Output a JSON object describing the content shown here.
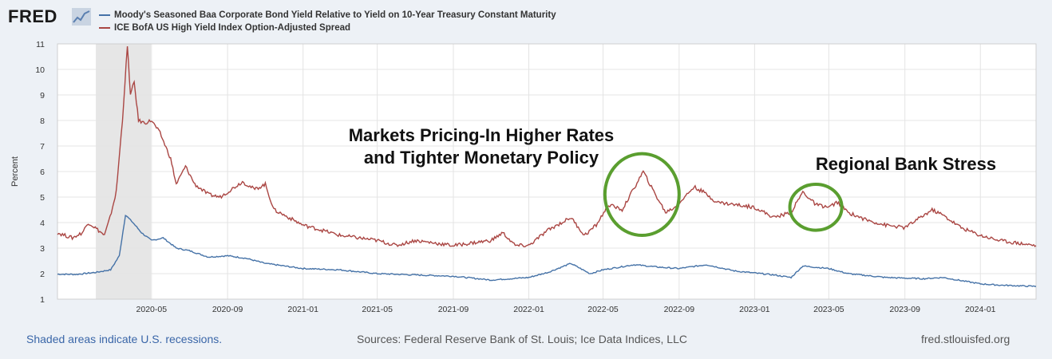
{
  "brand": {
    "logo_text": "FRED",
    "logo_icon": "chart-line-icon"
  },
  "colors": {
    "series_baa": "#4572a7",
    "series_hy": "#aa4643",
    "recession": "#e6e6e6",
    "circle": "#5a9e2f"
  },
  "chart_data": {
    "type": "line",
    "title": "",
    "ylabel": "Percent",
    "xlabel": "",
    "ylim": [
      1,
      11
    ],
    "xlim": [
      "2019-12-01",
      "2024-03-31"
    ],
    "y_ticks": [
      "1",
      "2",
      "3",
      "4",
      "5",
      "6",
      "7",
      "8",
      "9",
      "10",
      "11"
    ],
    "x_ticks": [
      {
        "date": "2020-05-01",
        "label": "2020-05"
      },
      {
        "date": "2020-09-01",
        "label": "2020-09"
      },
      {
        "date": "2021-01-01",
        "label": "2021-01"
      },
      {
        "date": "2021-05-01",
        "label": "2021-05"
      },
      {
        "date": "2021-09-01",
        "label": "2021-09"
      },
      {
        "date": "2022-01-01",
        "label": "2022-01"
      },
      {
        "date": "2022-05-01",
        "label": "2022-05"
      },
      {
        "date": "2022-09-01",
        "label": "2022-09"
      },
      {
        "date": "2023-01-01",
        "label": "2023-01"
      },
      {
        "date": "2023-05-01",
        "label": "2023-05"
      },
      {
        "date": "2023-09-01",
        "label": "2023-09"
      },
      {
        "date": "2024-01-01",
        "label": "2024-01"
      }
    ],
    "recession": {
      "start": "2020-02-01",
      "end": "2020-04-30"
    },
    "series": [
      {
        "name": "Moody's Seasoned Baa Corporate Bond Yield Relative to Yield on 10-Year Treasury Constant Maturity",
        "color": "#4572a7",
        "points": [
          [
            "2019-12-01",
            1.98
          ],
          [
            "2020-01-01",
            1.97
          ],
          [
            "2020-02-01",
            2.05
          ],
          [
            "2020-02-25",
            2.15
          ],
          [
            "2020-03-10",
            2.7
          ],
          [
            "2020-03-20",
            4.3
          ],
          [
            "2020-04-01",
            4.0
          ],
          [
            "2020-04-15",
            3.6
          ],
          [
            "2020-05-01",
            3.3
          ],
          [
            "2020-05-20",
            3.4
          ],
          [
            "2020-06-10",
            3.0
          ],
          [
            "2020-07-01",
            2.9
          ],
          [
            "2020-08-01",
            2.65
          ],
          [
            "2020-09-01",
            2.7
          ],
          [
            "2020-10-01",
            2.6
          ],
          [
            "2020-11-01",
            2.4
          ],
          [
            "2021-01-01",
            2.2
          ],
          [
            "2021-03-01",
            2.15
          ],
          [
            "2021-05-01",
            2.0
          ],
          [
            "2021-07-01",
            1.95
          ],
          [
            "2021-09-01",
            1.9
          ],
          [
            "2021-11-01",
            1.75
          ],
          [
            "2022-01-01",
            1.85
          ],
          [
            "2022-02-01",
            2.05
          ],
          [
            "2022-03-10",
            2.4
          ],
          [
            "2022-04-10",
            2.0
          ],
          [
            "2022-05-01",
            2.15
          ],
          [
            "2022-06-20",
            2.35
          ],
          [
            "2022-08-01",
            2.25
          ],
          [
            "2022-09-01",
            2.2
          ],
          [
            "2022-10-15",
            2.35
          ],
          [
            "2022-12-01",
            2.1
          ],
          [
            "2023-02-01",
            1.95
          ],
          [
            "2023-03-01",
            1.85
          ],
          [
            "2023-03-20",
            2.3
          ],
          [
            "2023-05-01",
            2.2
          ],
          [
            "2023-06-01",
            2.0
          ],
          [
            "2023-08-01",
            1.85
          ],
          [
            "2023-10-01",
            1.8
          ],
          [
            "2023-11-01",
            1.85
          ],
          [
            "2024-01-01",
            1.6
          ],
          [
            "2024-02-01",
            1.55
          ],
          [
            "2024-03-31",
            1.5
          ]
        ]
      },
      {
        "name": "ICE BofA US High Yield Index Option-Adjusted Spread",
        "color": "#aa4643",
        "points": [
          [
            "2019-12-01",
            3.6
          ],
          [
            "2019-12-25",
            3.4
          ],
          [
            "2020-01-10",
            3.6
          ],
          [
            "2020-01-20",
            4.0
          ],
          [
            "2020-01-31",
            3.8
          ],
          [
            "2020-02-15",
            3.5
          ],
          [
            "2020-02-24",
            4.2
          ],
          [
            "2020-03-05",
            5.2
          ],
          [
            "2020-03-15",
            8.0
          ],
          [
            "2020-03-23",
            10.9
          ],
          [
            "2020-03-28",
            9.0
          ],
          [
            "2020-04-03",
            9.5
          ],
          [
            "2020-04-10",
            8.0
          ],
          [
            "2020-04-20",
            7.9
          ],
          [
            "2020-05-01",
            8.0
          ],
          [
            "2020-05-15",
            7.5
          ],
          [
            "2020-06-01",
            6.5
          ],
          [
            "2020-06-10",
            5.5
          ],
          [
            "2020-06-25",
            6.2
          ],
          [
            "2020-07-10",
            5.5
          ],
          [
            "2020-08-01",
            5.1
          ],
          [
            "2020-08-20",
            5.0
          ],
          [
            "2020-09-01",
            5.2
          ],
          [
            "2020-09-25",
            5.6
          ],
          [
            "2020-10-15",
            5.3
          ],
          [
            "2020-11-01",
            5.5
          ],
          [
            "2020-11-15",
            4.5
          ],
          [
            "2020-12-01",
            4.3
          ],
          [
            "2021-01-01",
            3.9
          ],
          [
            "2021-02-01",
            3.7
          ],
          [
            "2021-03-01",
            3.5
          ],
          [
            "2021-04-01",
            3.4
          ],
          [
            "2021-05-01",
            3.3
          ],
          [
            "2021-06-01",
            3.1
          ],
          [
            "2021-07-01",
            3.3
          ],
          [
            "2021-08-01",
            3.2
          ],
          [
            "2021-09-01",
            3.1
          ],
          [
            "2021-10-01",
            3.2
          ],
          [
            "2021-11-01",
            3.3
          ],
          [
            "2021-11-20",
            3.6
          ],
          [
            "2021-12-10",
            3.1
          ],
          [
            "2022-01-01",
            3.1
          ],
          [
            "2022-02-01",
            3.7
          ],
          [
            "2022-03-10",
            4.2
          ],
          [
            "2022-04-01",
            3.5
          ],
          [
            "2022-04-20",
            3.9
          ],
          [
            "2022-05-10",
            4.7
          ],
          [
            "2022-06-01",
            4.5
          ],
          [
            "2022-07-05",
            6.0
          ],
          [
            "2022-07-20",
            5.3
          ],
          [
            "2022-08-10",
            4.4
          ],
          [
            "2022-08-25",
            4.6
          ],
          [
            "2022-09-10",
            5.0
          ],
          [
            "2022-09-25",
            5.4
          ],
          [
            "2022-10-10",
            5.2
          ],
          [
            "2022-11-01",
            4.8
          ],
          [
            "2022-12-01",
            4.7
          ],
          [
            "2023-01-01",
            4.6
          ],
          [
            "2023-02-01",
            4.2
          ],
          [
            "2023-03-01",
            4.4
          ],
          [
            "2023-03-20",
            5.2
          ],
          [
            "2023-04-10",
            4.7
          ],
          [
            "2023-05-01",
            4.6
          ],
          [
            "2023-05-15",
            4.8
          ],
          [
            "2023-06-01",
            4.4
          ],
          [
            "2023-07-01",
            4.1
          ],
          [
            "2023-08-01",
            3.9
          ],
          [
            "2023-09-01",
            3.8
          ],
          [
            "2023-10-15",
            4.5
          ],
          [
            "2023-11-01",
            4.3
          ],
          [
            "2023-12-01",
            3.8
          ],
          [
            "2024-01-01",
            3.5
          ],
          [
            "2024-02-01",
            3.3
          ],
          [
            "2024-03-31",
            3.1
          ]
        ]
      }
    ],
    "annotations": [
      {
        "text_lines": [
          "Markets Pricing-In Higher Rates",
          "and Tighter Monetary Policy"
        ]
      },
      {
        "text_lines": [
          "Regional Bank Stress"
        ]
      }
    ],
    "circles": [
      {
        "center_date": "2022-07-03",
        "center_y": 5.1,
        "rx_days": 60,
        "ry_value": 1.6
      },
      {
        "center_date": "2023-04-10",
        "center_y": 4.6,
        "rx_days": 42,
        "ry_value": 0.9
      }
    ]
  },
  "footer": {
    "recession_note": "Shaded areas indicate U.S. recessions.",
    "sources": "Sources: Federal Reserve Bank of St. Louis; Ice Data Indices, LLC",
    "site": "fred.stlouisfed.org"
  }
}
